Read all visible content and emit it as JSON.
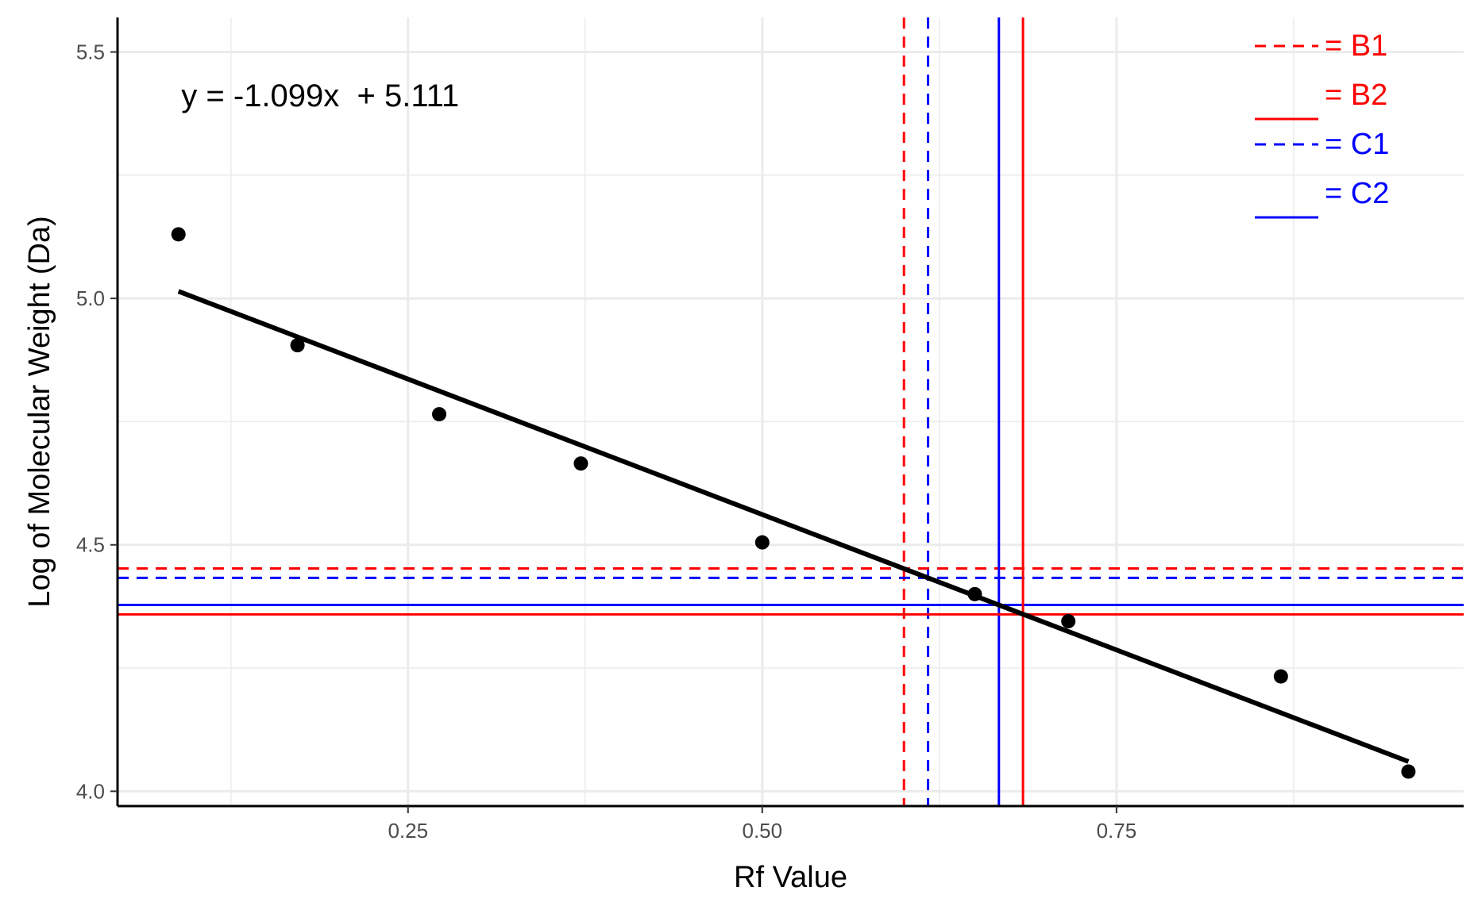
{
  "chart_data": {
    "type": "scatter",
    "xlabel": "Rf Value",
    "ylabel": "Log of Molecular Weight (Da)",
    "xlim": [
      0.045,
      0.995
    ],
    "ylim": [
      3.97,
      5.57
    ],
    "x_ticks": [
      0.25,
      0.5,
      0.75
    ],
    "x_tick_labels": [
      "0.25",
      "0.50",
      "0.75"
    ],
    "y_ticks": [
      4.0,
      4.5,
      5.0,
      5.5
    ],
    "y_tick_labels": [
      "4.0",
      "4.5",
      "5.0",
      "5.5"
    ],
    "grid": true,
    "points": [
      {
        "x": 0.088,
        "y": 5.13
      },
      {
        "x": 0.172,
        "y": 4.905
      },
      {
        "x": 0.272,
        "y": 4.765
      },
      {
        "x": 0.372,
        "y": 4.665
      },
      {
        "x": 0.5,
        "y": 4.505
      },
      {
        "x": 0.65,
        "y": 4.4
      },
      {
        "x": 0.716,
        "y": 4.345
      },
      {
        "x": 0.866,
        "y": 4.233
      },
      {
        "x": 0.956,
        "y": 4.04
      }
    ],
    "fit_line": {
      "slope": -1.099,
      "intercept": 5.111,
      "x_range": [
        0.088,
        0.956
      ]
    },
    "equation_label": {
      "text": "y = -1.099x  + 5.111",
      "x": 0.09,
      "y": 5.39
    },
    "reference_lines": [
      {
        "name": "B1",
        "color": "#ff0000",
        "style": "dashed",
        "x": 0.6,
        "y": 4.452
      },
      {
        "name": "C1",
        "color": "#0000ff",
        "style": "dashed",
        "x": 0.617,
        "y": 4.433
      },
      {
        "name": "C2",
        "color": "#0000ff",
        "style": "solid",
        "x": 0.667,
        "y": 4.378
      },
      {
        "name": "B2",
        "color": "#ff0000",
        "style": "solid",
        "x": 0.684,
        "y": 4.359
      }
    ],
    "legend": {
      "placement": "top-right",
      "entries": [
        {
          "label": "= B1",
          "color": "#ff0000",
          "style": "dashed"
        },
        {
          "label": "= B2",
          "color": "#ff0000",
          "style": "solid"
        },
        {
          "label": "= C1",
          "color": "#0000ff",
          "style": "dashed"
        },
        {
          "label": "= C2",
          "color": "#0000ff",
          "style": "solid"
        }
      ]
    }
  }
}
